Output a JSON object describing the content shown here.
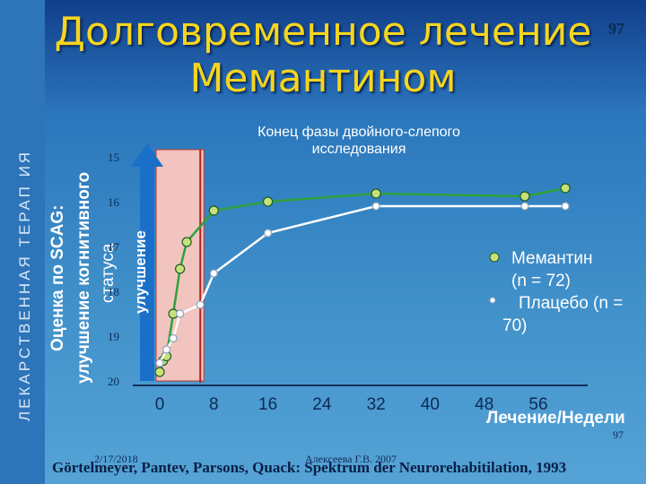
{
  "slide": {
    "title_line1": "Долговременное лечение",
    "title_line2": "Мемантином",
    "slide_number_top": "97",
    "side_text": "ЛЕКАРСТВЕННАЯ ТЕРАП ИЯ",
    "footer_date": "2/17/2018",
    "footer_author": "Алексеева Г.В. 2007",
    "footer_number": "97",
    "citation": "Görtelmeyer, Pantev, Parsons, Quack: Spektrum der Neurorehabitilation, 1993"
  },
  "chart_data": {
    "type": "line",
    "title": "",
    "ylabel_lines": [
      "Оценка по SCAG:",
      "улучшение когнитивного",
      "статуса"
    ],
    "improvement_label": "улучшение",
    "xlabel": "Лечение/Недели",
    "annotation": "Конец фазы двойного-слепого исследования",
    "x_ticks": [
      "0",
      "8",
      "16",
      "24",
      "32",
      "40",
      "48",
      "56"
    ],
    "y_ticks": [
      "15",
      "16",
      "17",
      "18",
      "19",
      "20"
    ],
    "y_inverted": true,
    "ylim": [
      15,
      20
    ],
    "xlim": [
      0,
      56
    ],
    "double_blind_phase_weeks": [
      0,
      6
    ],
    "colors": {
      "memantine": "#2ea23a",
      "placebo": "#ffffff",
      "phase_band": "#f2c4bf",
      "arrow": "#1a6fc8"
    },
    "legend": [
      "Мемантин",
      "(n = 72)",
      "Плацебо (n =",
      "70)"
    ],
    "series": [
      {
        "name": "Мемантин (n = 72)",
        "x": [
          0,
          0.5,
          1,
          2,
          3,
          4,
          8,
          16,
          32,
          54,
          60
        ],
        "y": [
          19.8,
          19.55,
          19.45,
          18.5,
          17.5,
          16.9,
          16.2,
          16.0,
          15.82,
          15.88,
          15.7
        ]
      },
      {
        "name": "Плацебо (n = 70)",
        "x": [
          0,
          1,
          2,
          3,
          6,
          8,
          16,
          32,
          54,
          60
        ],
        "y": [
          19.6,
          19.3,
          19.05,
          18.5,
          18.3,
          17.6,
          16.7,
          16.1,
          16.1,
          16.1
        ]
      }
    ]
  }
}
